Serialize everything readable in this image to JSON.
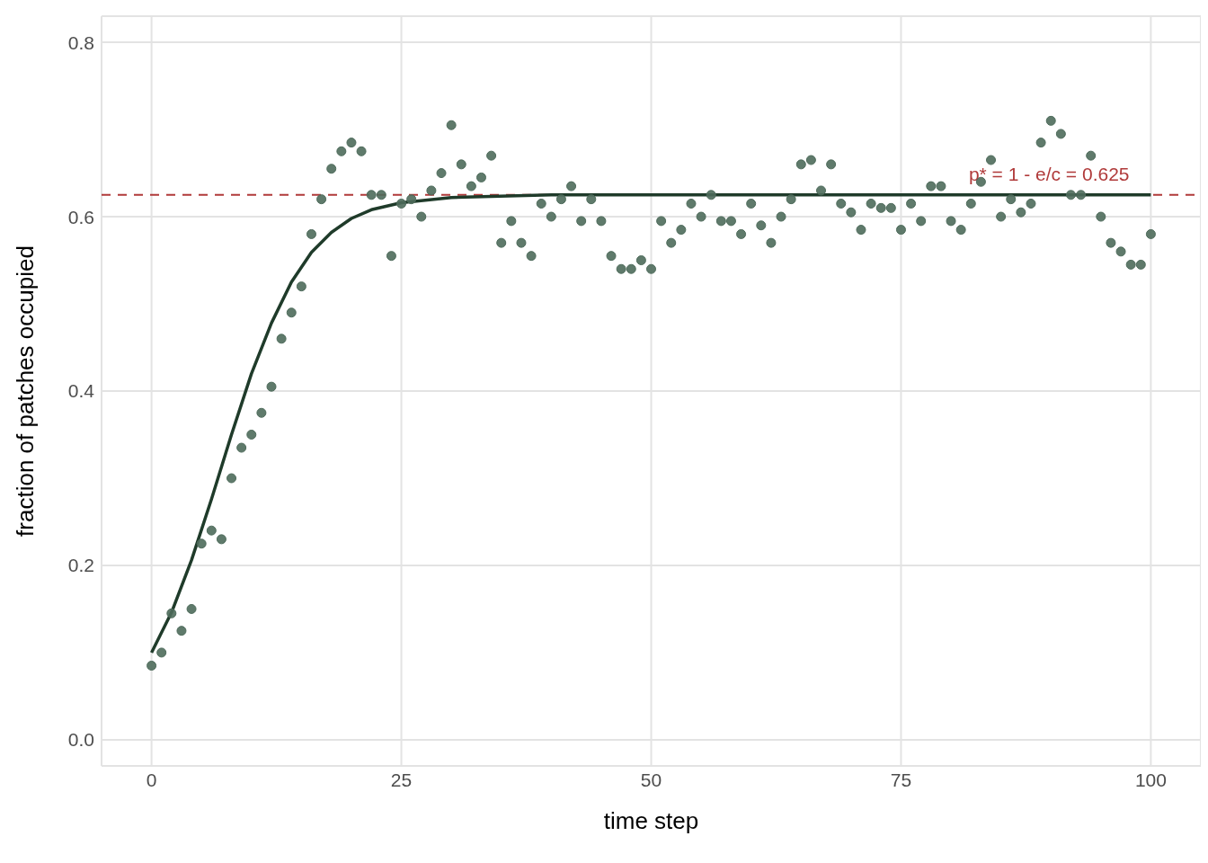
{
  "chart_data": {
    "type": "scatter",
    "xlabel": "time step",
    "ylabel": "fraction of patches occupied",
    "xlim": [
      -5,
      105
    ],
    "ylim": [
      -0.03,
      0.83
    ],
    "xticks": [
      0,
      25,
      50,
      75,
      100
    ],
    "yticks": [
      {
        "value": 0,
        "label": "0.0"
      },
      0.2,
      0.4,
      0.6,
      0.8
    ],
    "grid": true,
    "legend": false,
    "series": [
      {
        "color": "#4e6b5b",
        "marker": "circle",
        "x": [
          0,
          1,
          2,
          3,
          4,
          5,
          6,
          7,
          8,
          9,
          10,
          11,
          12,
          13,
          14,
          15,
          16,
          17,
          18,
          19,
          20,
          21,
          22,
          23,
          24,
          25,
          26,
          27,
          28,
          29,
          30,
          31,
          32,
          33,
          34,
          35,
          36,
          37,
          38,
          39,
          40,
          41,
          42,
          43,
          44,
          45,
          46,
          47,
          48,
          49,
          50,
          51,
          52,
          53,
          54,
          55,
          56,
          57,
          58,
          59,
          60,
          61,
          62,
          63,
          64,
          65,
          66,
          67,
          68,
          69,
          70,
          71,
          72,
          73,
          74,
          75,
          76,
          77,
          78,
          79,
          80,
          81,
          82,
          83,
          84,
          85,
          86,
          87,
          88,
          89,
          90,
          91,
          92,
          93,
          94,
          95,
          96,
          97,
          98,
          99,
          100
        ],
        "values": [
          0.085,
          0.1,
          0.145,
          0.125,
          0.15,
          0.225,
          0.24,
          0.23,
          0.3,
          0.335,
          0.35,
          0.375,
          0.405,
          0.46,
          0.49,
          0.52,
          0.58,
          0.62,
          0.655,
          0.675,
          0.685,
          0.675,
          0.625,
          0.625,
          0.555,
          0.615,
          0.62,
          0.6,
          0.63,
          0.65,
          0.705,
          0.66,
          0.635,
          0.645,
          0.67,
          0.57,
          0.595,
          0.57,
          0.555,
          0.615,
          0.6,
          0.62,
          0.635,
          0.595,
          0.62,
          0.595,
          0.555,
          0.54,
          0.54,
          0.55,
          0.54,
          0.595,
          0.57,
          0.585,
          0.615,
          0.6,
          0.625,
          0.595,
          0.595,
          0.58,
          0.615,
          0.59,
          0.57,
          0.6,
          0.62,
          0.66,
          0.665,
          0.63,
          0.66,
          0.615,
          0.605,
          0.585,
          0.615,
          0.61,
          0.61,
          0.585,
          0.615,
          0.595,
          0.635,
          0.635,
          0.595,
          0.585,
          0.615,
          0.64,
          0.665,
          0.6,
          0.62,
          0.605,
          0.615,
          0.685,
          0.71,
          0.695,
          0.625,
          0.625,
          0.67,
          0.6,
          0.57,
          0.56,
          0.545,
          0.545,
          0.58
        ]
      },
      {
        "type": "line",
        "color": "#1f3b2a",
        "marker": "none",
        "line_style": "solid",
        "x": [
          0,
          2,
          4,
          6,
          8,
          10,
          12,
          14,
          16,
          18,
          20,
          22,
          25,
          30,
          40,
          100
        ],
        "values": [
          0.1,
          0.146,
          0.206,
          0.276,
          0.35,
          0.42,
          0.478,
          0.525,
          0.559,
          0.582,
          0.598,
          0.608,
          0.616,
          0.622,
          0.625,
          0.625
        ]
      }
    ],
    "ref_lines": [
      {
        "axis": "y",
        "value": 0.625,
        "label": "p* = 1 - e/c = 0.625",
        "color": "#b03a3a",
        "line_style": "dashed"
      }
    ]
  }
}
